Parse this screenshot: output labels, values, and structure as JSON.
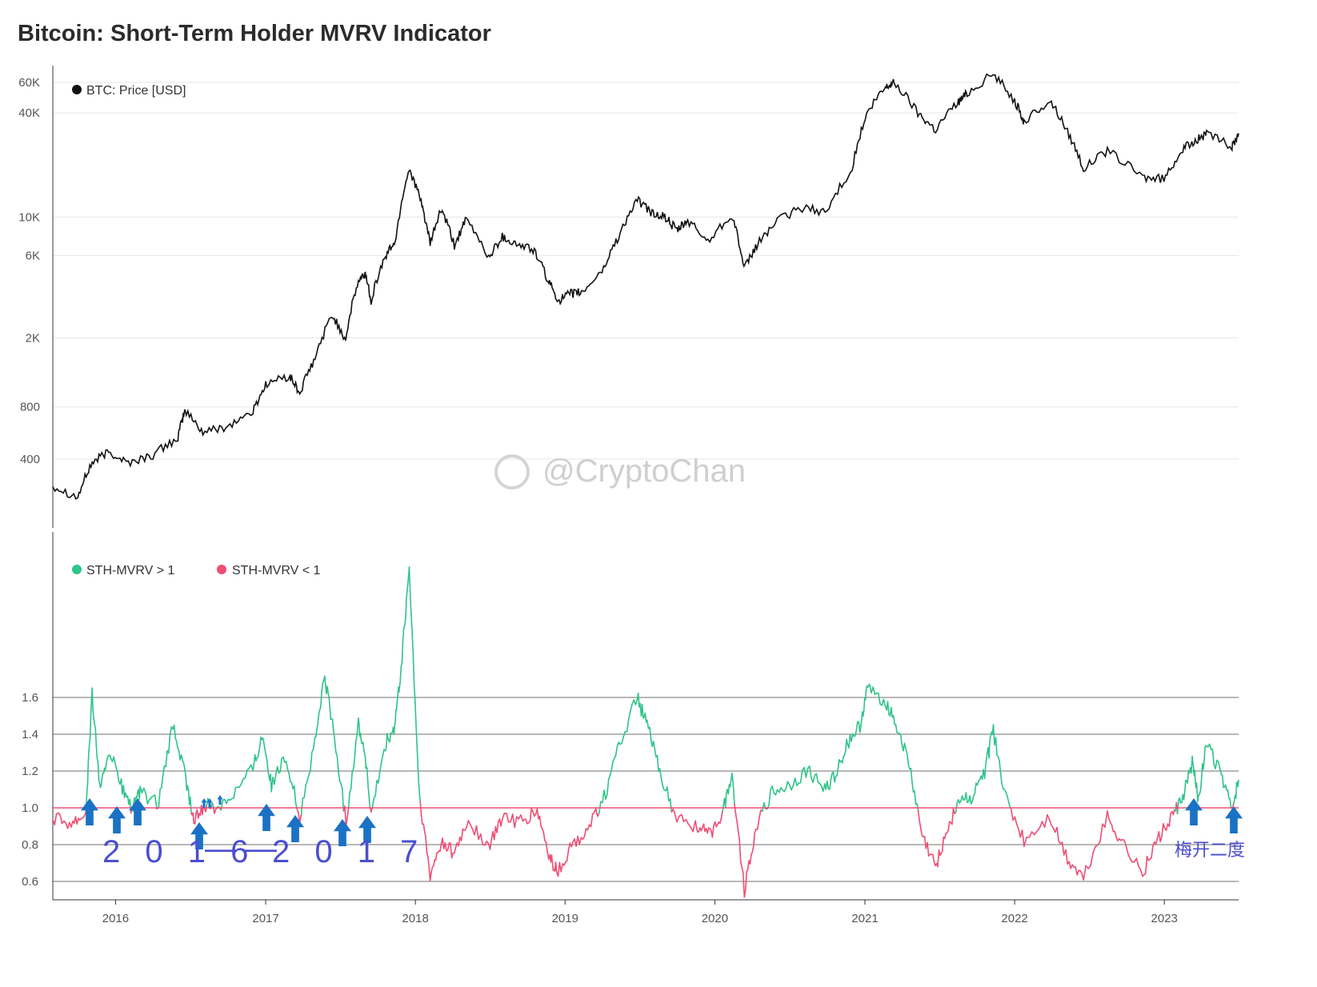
{
  "title": "Bitcoin: Short-Term Holder MVRV Indicator",
  "watermark": "@CryptoChan",
  "colors": {
    "price_line": "#111111",
    "sth_above": "#2ec489",
    "sth_below": "#ef4d73",
    "baseline_green": "#2ec489",
    "baseline_red": "#ef4d73",
    "arrow": "#1a72c4",
    "annotation": "#4a4ed0",
    "gridline": "#e6e6e6",
    "strong_gridline": "#b8b8b8"
  },
  "annotations": {
    "period_label_start": "2016",
    "period_label_end": "2017",
    "period_dash": "——",
    "right_label": "梅开二度"
  },
  "chart_data": [
    {
      "type": "line",
      "panel": "top",
      "yscale": "log",
      "y_ticks": [
        "400",
        "800",
        "2K",
        "6K",
        "10K",
        "40K",
        "60K"
      ],
      "y_tick_values": [
        400,
        800,
        2000,
        6000,
        10000,
        40000,
        60000
      ],
      "ylim": [
        160,
        75000
      ],
      "series": [
        {
          "name": "BTC: Price [USD]",
          "x": [
            "2015-08-01",
            "2015-10-01",
            "2015-11-05",
            "2015-12-15",
            "2016-02-01",
            "2016-04-01",
            "2016-06-01",
            "2016-06-18",
            "2016-08-01",
            "2016-10-01",
            "2016-12-01",
            "2017-01-04",
            "2017-03-01",
            "2017-03-25",
            "2017-05-01",
            "2017-06-12",
            "2017-07-15",
            "2017-08-15",
            "2017-09-01",
            "2017-09-15",
            "2017-10-20",
            "2017-11-15",
            "2017-12-17",
            "2018-01-15",
            "2018-02-06",
            "2018-03-05",
            "2018-04-06",
            "2018-05-05",
            "2018-06-29",
            "2018-08-01",
            "2018-09-01",
            "2018-10-15",
            "2018-11-20",
            "2018-12-15",
            "2019-01-15",
            "2019-02-15",
            "2019-04-05",
            "2019-05-15",
            "2019-06-26",
            "2019-08-01",
            "2019-09-01",
            "2019-10-01",
            "2019-10-27",
            "2019-12-15",
            "2020-02-12",
            "2020-03-12",
            "2020-04-15",
            "2020-06-01",
            "2020-08-01",
            "2020-10-01",
            "2020-12-01",
            "2021-01-08",
            "2021-02-20",
            "2021-03-13",
            "2021-05-10",
            "2021-06-22",
            "2021-08-15",
            "2021-09-07",
            "2021-11-10",
            "2022-01-01",
            "2022-01-24",
            "2022-03-28",
            "2022-05-10",
            "2022-06-18",
            "2022-08-15",
            "2022-11-09",
            "2022-12-31",
            "2023-02-15",
            "2023-03-20",
            "2023-04-14",
            "2023-06-15",
            "2023-07-01"
          ],
          "values": [
            280,
            240,
            380,
            440,
            380,
            420,
            530,
            760,
            570,
            620,
            750,
            1100,
            1200,
            950,
            1500,
            2700,
            1950,
            4200,
            4700,
            3300,
            5900,
            7400,
            19000,
            12000,
            6900,
            11000,
            6800,
            9600,
            5800,
            7700,
            7000,
            6500,
            4300,
            3300,
            3600,
            3700,
            5000,
            8000,
            12500,
            10500,
            10000,
            8300,
            9500,
            7200,
            10300,
            4900,
            7000,
            9500,
            11300,
            10700,
            19000,
            40000,
            56000,
            60000,
            40000,
            32000,
            46000,
            52000,
            67000,
            47000,
            35000,
            47000,
            31000,
            19000,
            24000,
            17000,
            16500,
            24500,
            28000,
            30000,
            25500,
            30500
          ]
        }
      ]
    },
    {
      "type": "line",
      "panel": "bottom",
      "y_ticks": [
        "0.6",
        "0.8",
        "1.0",
        "1.2",
        "1.4",
        "1.6"
      ],
      "y_tick_values": [
        0.6,
        0.8,
        1.0,
        1.2,
        1.4,
        1.6
      ],
      "ylim": [
        0.5,
        2.5
      ],
      "threshold": 1.0,
      "x_ticks": [
        "2016",
        "2017",
        "2018",
        "2019",
        "2020",
        "2021",
        "2022",
        "2023"
      ],
      "series": [
        {
          "name": "STH-MVRV > 1"
        },
        {
          "name": "STH-MVRV < 1"
        }
      ],
      "x": [
        "2015-08-01",
        "2015-09-15",
        "2015-10-20",
        "2015-11-05",
        "2015-11-25",
        "2015-12-15",
        "2016-01-15",
        "2016-02-10",
        "2016-03-01",
        "2016-04-15",
        "2016-05-20",
        "2016-06-18",
        "2016-07-10",
        "2016-08-05",
        "2016-09-01",
        "2016-10-15",
        "2016-12-01",
        "2016-12-25",
        "2017-01-15",
        "2017-02-20",
        "2017-03-25",
        "2017-05-01",
        "2017-05-25",
        "2017-06-15",
        "2017-07-16",
        "2017-08-15",
        "2017-09-01",
        "2017-09-15",
        "2017-10-20",
        "2017-11-10",
        "2017-11-25",
        "2017-12-17",
        "2018-01-10",
        "2018-02-06",
        "2018-03-05",
        "2018-04-06",
        "2018-05-10",
        "2018-06-29",
        "2018-08-01",
        "2018-09-20",
        "2018-10-25",
        "2018-11-25",
        "2018-12-15",
        "2019-01-20",
        "2019-03-01",
        "2019-04-10",
        "2019-05-15",
        "2019-06-26",
        "2019-07-20",
        "2019-08-20",
        "2019-09-25",
        "2019-11-20",
        "2019-12-20",
        "2020-01-20",
        "2020-02-12",
        "2020-03-13",
        "2020-04-10",
        "2020-05-20",
        "2020-07-01",
        "2020-08-15",
        "2020-09-25",
        "2020-10-25",
        "2020-11-20",
        "2020-12-20",
        "2021-01-08",
        "2021-02-20",
        "2021-03-20",
        "2021-04-20",
        "2021-05-20",
        "2021-06-22",
        "2021-07-20",
        "2021-08-20",
        "2021-09-20",
        "2021-10-20",
        "2021-11-10",
        "2021-12-10",
        "2022-01-24",
        "2022-03-28",
        "2022-05-10",
        "2022-06-18",
        "2022-08-15",
        "2022-09-20",
        "2022-11-09",
        "2022-12-15",
        "2023-01-20",
        "2023-02-15",
        "2023-03-10",
        "2023-03-25",
        "2023-04-14",
        "2023-05-20",
        "2023-06-15",
        "2023-07-01"
      ],
      "values": [
        0.95,
        0.92,
        0.97,
        1.62,
        1.08,
        1.32,
        1.12,
        0.99,
        1.08,
        1.02,
        1.45,
        1.18,
        0.92,
        1.02,
        1.0,
        1.08,
        1.22,
        1.4,
        1.12,
        1.28,
        0.95,
        1.35,
        1.72,
        1.42,
        0.92,
        1.46,
        1.28,
        0.95,
        1.35,
        1.42,
        1.7,
        2.3,
        1.08,
        0.62,
        0.82,
        0.75,
        0.93,
        0.78,
        0.95,
        0.92,
        0.98,
        0.72,
        0.65,
        0.8,
        0.9,
        1.08,
        1.35,
        1.6,
        1.45,
        1.2,
        0.95,
        0.9,
        0.85,
        0.98,
        1.18,
        0.55,
        0.9,
        1.08,
        1.12,
        1.2,
        1.1,
        1.2,
        1.35,
        1.45,
        1.65,
        1.58,
        1.45,
        1.22,
        0.85,
        0.68,
        0.88,
        1.05,
        1.05,
        1.2,
        1.42,
        1.05,
        0.82,
        0.95,
        0.72,
        0.62,
        0.95,
        0.82,
        0.64,
        0.83,
        0.95,
        1.05,
        1.25,
        1.05,
        1.35,
        1.18,
        0.98,
        1.15
      ]
    }
  ]
}
